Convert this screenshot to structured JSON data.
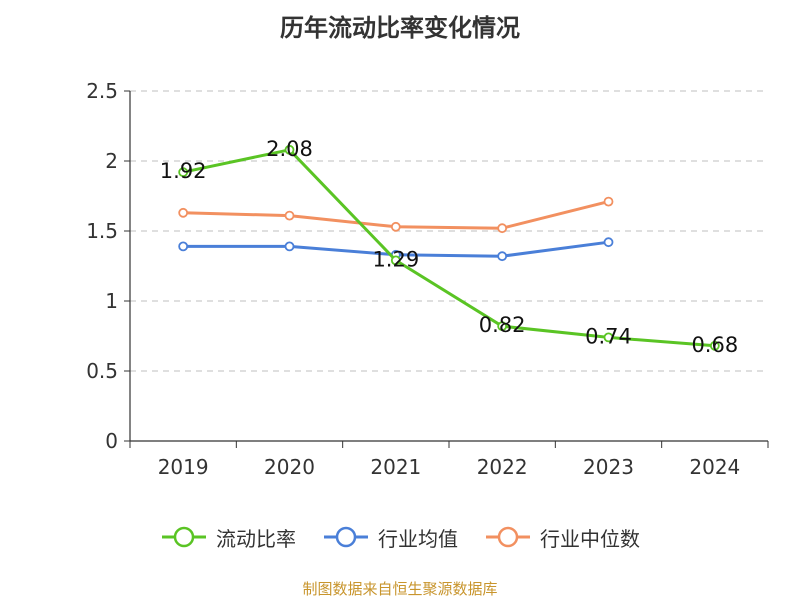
{
  "chart_data": {
    "type": "line",
    "title": "历年流动比率变化情况",
    "categories": [
      "2019",
      "2020",
      "2021",
      "2022",
      "2023",
      "2024"
    ],
    "ylim": [
      0,
      2.5
    ],
    "y_ticks": [
      "0",
      "0.5",
      "1",
      "1.5",
      "2",
      "2.5"
    ],
    "grid": true,
    "legend_position": "bottom",
    "series": [
      {
        "name": "流动比率",
        "color": "#5ac424",
        "values": [
          1.92,
          2.08,
          1.29,
          0.82,
          0.74,
          0.68
        ],
        "labels": [
          "1.92",
          "2.08",
          "1.29",
          "0.82",
          "0.74",
          "0.68"
        ]
      },
      {
        "name": "行业均值",
        "color": "#4a7fd8",
        "values": [
          1.39,
          1.39,
          1.33,
          1.32,
          1.42,
          null
        ]
      },
      {
        "name": "行业中位数",
        "color": "#f29060",
        "values": [
          1.63,
          1.61,
          1.53,
          1.52,
          1.71,
          null
        ]
      }
    ]
  },
  "source_note": "制图数据来自恒生聚源数据库"
}
